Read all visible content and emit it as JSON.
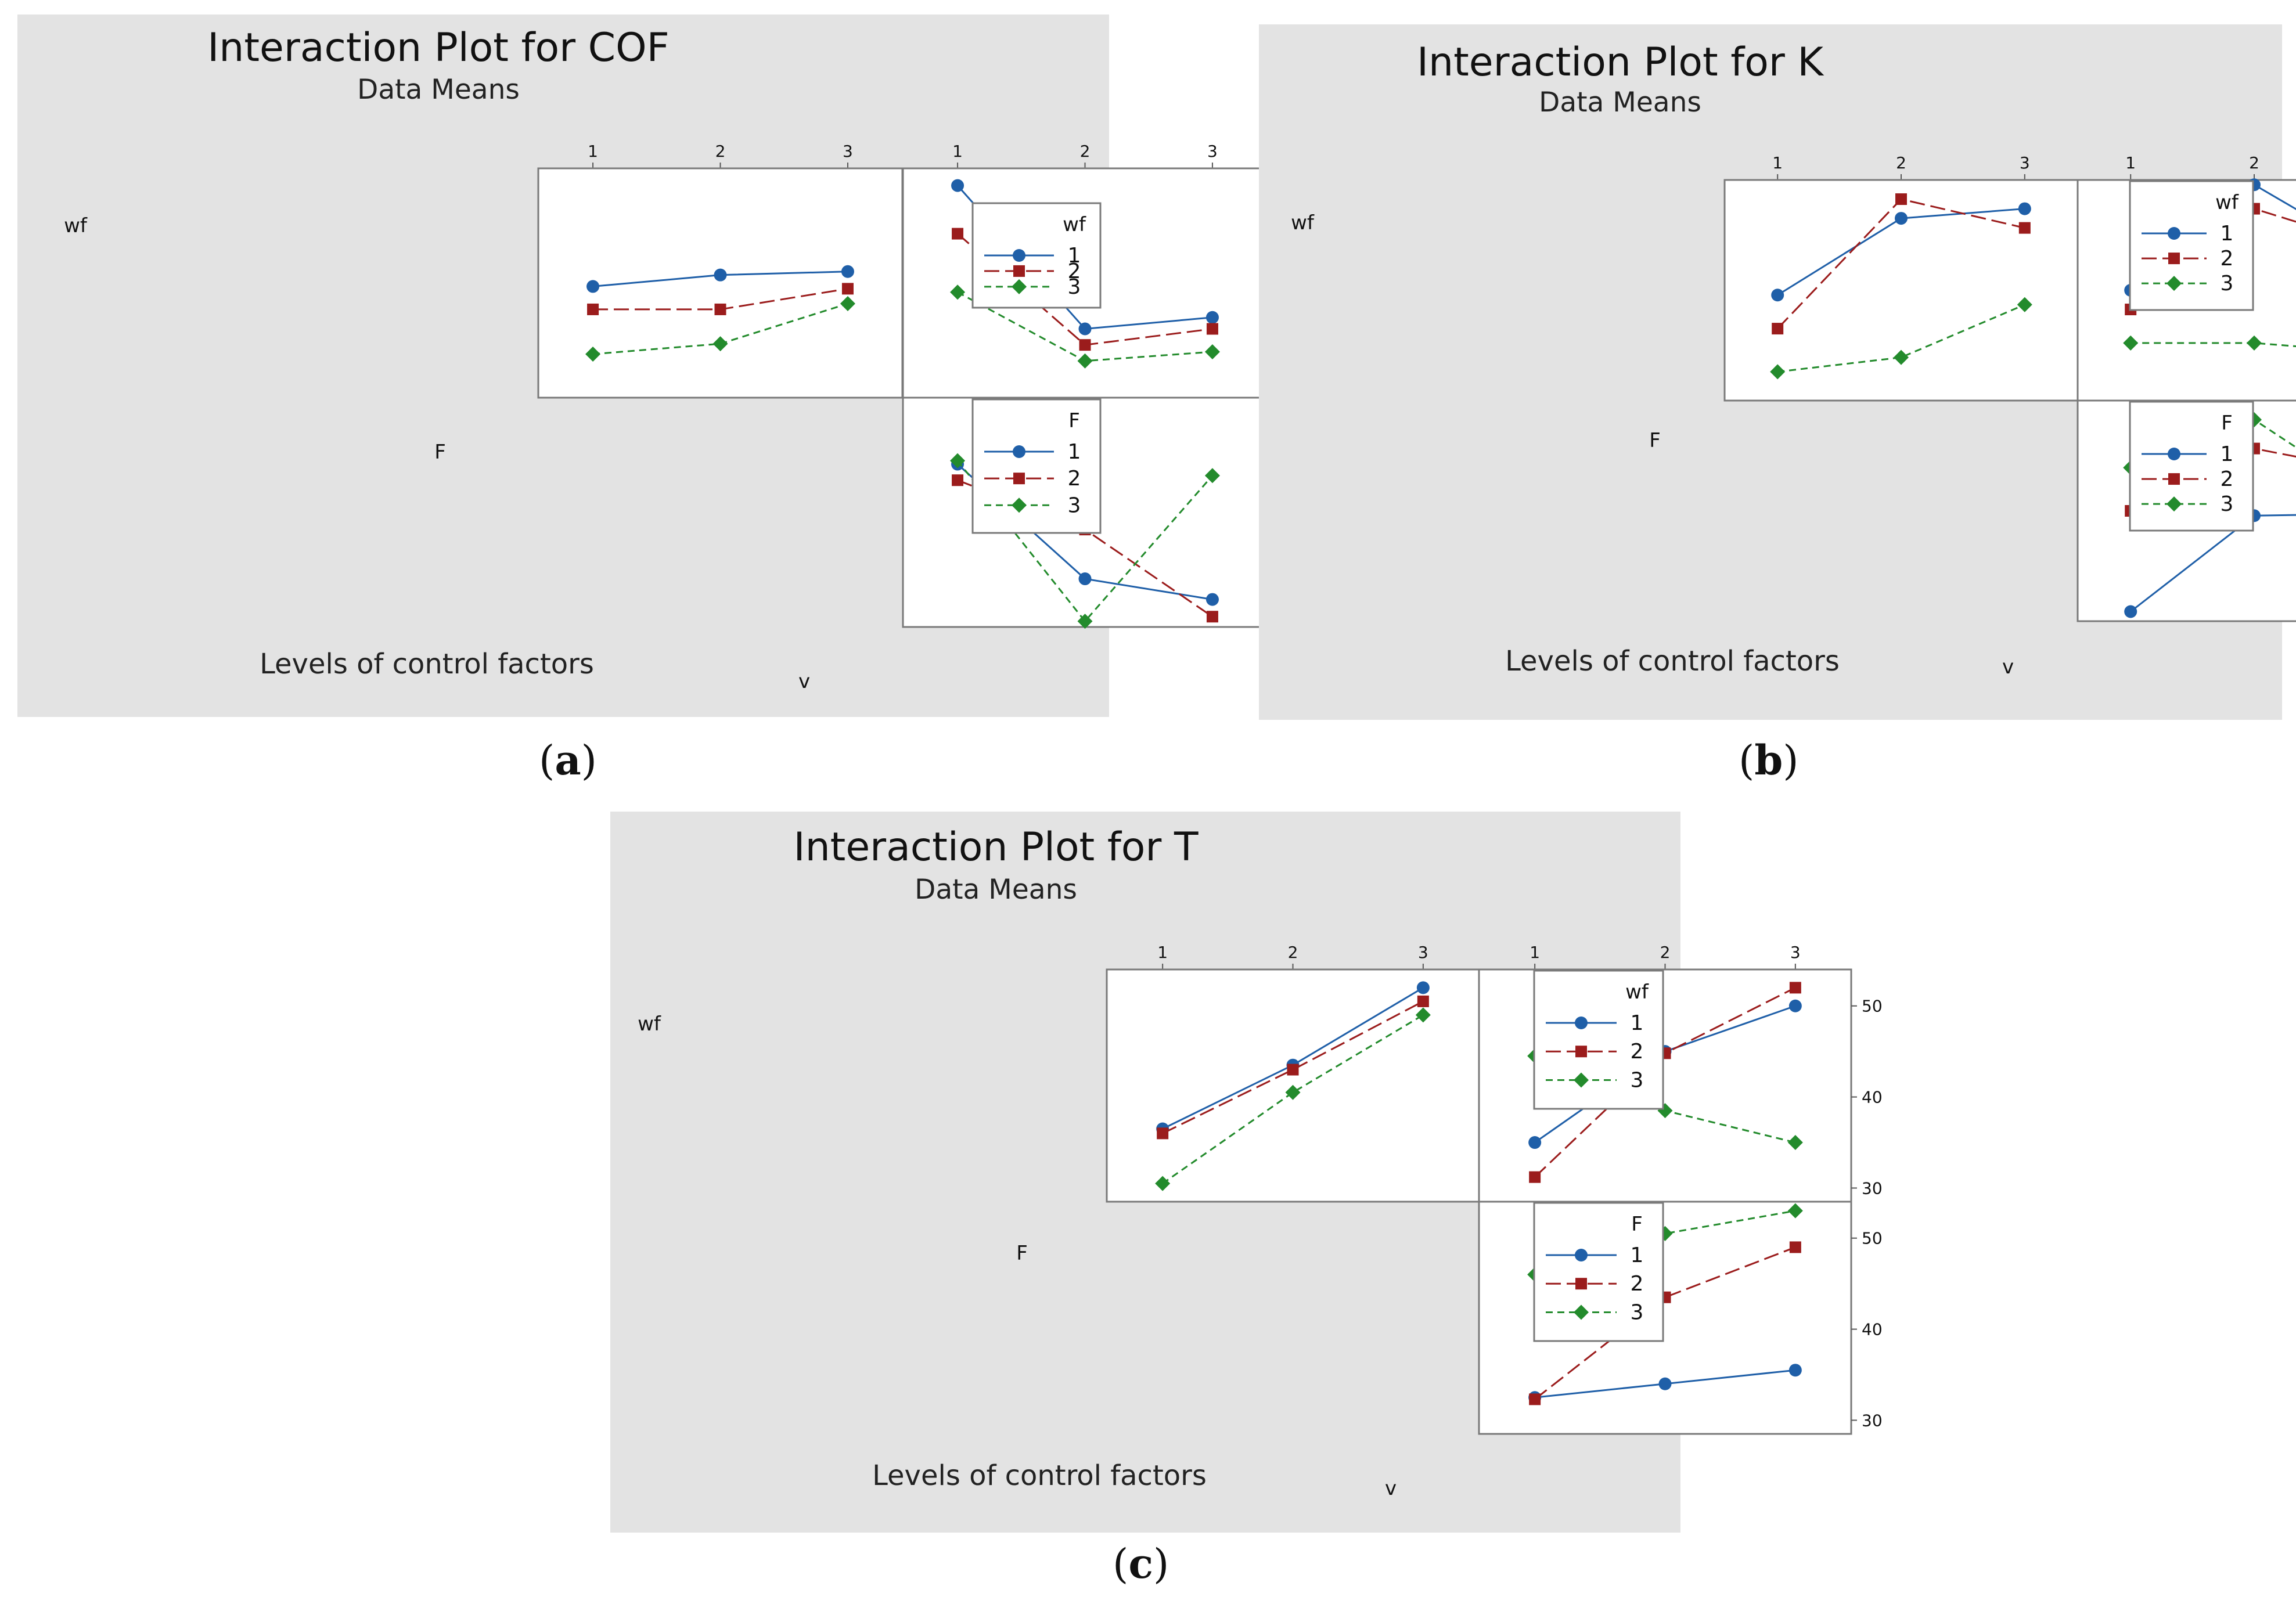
{
  "colors": {
    "level1": "#1f5fa8",
    "level2": "#9b1c1c",
    "level3": "#238b2c",
    "panel_bg": "#e3e3e3"
  },
  "icons": {
    "level1": "circle-marker",
    "level2": "square-marker",
    "level3": "diamond-marker"
  },
  "chart_data": [
    {
      "type": "line",
      "caption_letter": "a",
      "title": "Interaction Plot for COF",
      "subtitle": "Data Means",
      "xlabel": "Levels of control factors",
      "factors": [
        "wf",
        "F",
        "v"
      ],
      "levels": [
        "1",
        "2",
        "3"
      ],
      "ylim": [
        0.35,
        0.55
      ],
      "yticks": [
        "0.55",
        "0.45",
        "0.35"
      ],
      "cells": [
        {
          "id": "wf_F",
          "row_factor": "wf",
          "col_factor": "F",
          "series": [
            {
              "name": "1",
              "values": [
                0.447,
                0.457,
                0.46
              ]
            },
            {
              "name": "2",
              "values": [
                0.427,
                0.427,
                0.445
              ]
            },
            {
              "name": "3",
              "values": [
                0.388,
                0.397,
                0.432
              ]
            }
          ]
        },
        {
          "id": "wf_v",
          "row_factor": "wf",
          "col_factor": "v",
          "series": [
            {
              "name": "1",
              "values": [
                0.535,
                0.41,
                0.42
              ]
            },
            {
              "name": "2",
              "values": [
                0.493,
                0.396,
                0.41
              ]
            },
            {
              "name": "3",
              "values": [
                0.442,
                0.382,
                0.39
              ]
            }
          ]
        },
        {
          "id": "F_v",
          "row_factor": "F",
          "col_factor": "v",
          "series": [
            {
              "name": "1",
              "values": [
                0.492,
                0.392,
                0.374
              ]
            },
            {
              "name": "2",
              "values": [
                0.478,
                0.435,
                0.359
              ]
            },
            {
              "name": "3",
              "values": [
                0.495,
                0.355,
                0.482
              ]
            }
          ]
        }
      ],
      "legends": [
        {
          "title": "wf",
          "entries": [
            "1",
            "2",
            "3"
          ]
        },
        {
          "title": "F",
          "entries": [
            "1",
            "2",
            "3"
          ]
        }
      ]
    },
    {
      "type": "line",
      "caption_letter": "b",
      "title": "Interaction Plot for K",
      "subtitle": "Data Means",
      "xlabel": "Levels of control factors",
      "factors": [
        "wf",
        "F",
        "v"
      ],
      "levels": [
        "1",
        "2",
        "3"
      ],
      "ylim": [
        3,
        26
      ],
      "yticks": [
        "24",
        "16",
        "8"
      ],
      "cells": [
        {
          "id": "wf_F",
          "row_factor": "wf",
          "col_factor": "F",
          "series": [
            {
              "name": "1",
              "values": [
                14,
                22,
                23
              ]
            },
            {
              "name": "2",
              "values": [
                10.5,
                24,
                21
              ]
            },
            {
              "name": "3",
              "values": [
                6,
                7.5,
                13
              ]
            }
          ]
        },
        {
          "id": "wf_v",
          "row_factor": "wf",
          "col_factor": "v",
          "series": [
            {
              "name": "1",
              "values": [
                14.5,
                25.5,
                18
              ]
            },
            {
              "name": "2",
              "values": [
                12.5,
                23,
                19
              ]
            },
            {
              "name": "3",
              "values": [
                9,
                9,
                8
              ]
            }
          ]
        },
        {
          "id": "F_v",
          "row_factor": "F",
          "col_factor": "v",
          "series": [
            {
              "name": "1",
              "values": [
                4,
                14,
                14.2
              ]
            },
            {
              "name": "2",
              "values": [
                14.5,
                21,
                18.5
              ]
            },
            {
              "name": "3",
              "values": [
                19,
                24,
                15.5
              ]
            }
          ]
        }
      ],
      "legends": [
        {
          "title": "wf",
          "entries": [
            "1",
            "2",
            "3"
          ]
        },
        {
          "title": "F",
          "entries": [
            "1",
            "2",
            "3"
          ]
        }
      ]
    },
    {
      "type": "line",
      "caption_letter": "c",
      "title": "Interaction Plot for T",
      "subtitle": "Data Means",
      "xlabel": "Levels of control factors",
      "factors": [
        "wf",
        "F",
        "v"
      ],
      "levels": [
        "1",
        "2",
        "3"
      ],
      "ylim": [
        28.5,
        54
      ],
      "yticks": [
        "50",
        "40",
        "30"
      ],
      "cells": [
        {
          "id": "wf_F",
          "row_factor": "wf",
          "col_factor": "F",
          "series": [
            {
              "name": "1",
              "values": [
                36.5,
                43.5,
                52
              ]
            },
            {
              "name": "2",
              "values": [
                36,
                43,
                50.5
              ]
            },
            {
              "name": "3",
              "values": [
                30.5,
                40.5,
                49
              ]
            }
          ]
        },
        {
          "id": "wf_v",
          "row_factor": "wf",
          "col_factor": "v",
          "series": [
            {
              "name": "1",
              "values": [
                35,
                45,
                50
              ]
            },
            {
              "name": "2",
              "values": [
                31.2,
                44.8,
                52
              ]
            },
            {
              "name": "3",
              "values": [
                44.5,
                38.5,
                35
              ]
            }
          ]
        },
        {
          "id": "F_v",
          "row_factor": "F",
          "col_factor": "v",
          "series": [
            {
              "name": "1",
              "values": [
                32.5,
                34,
                35.5
              ]
            },
            {
              "name": "2",
              "values": [
                32.3,
                43.5,
                49
              ]
            },
            {
              "name": "3",
              "values": [
                46,
                50.5,
                53
              ]
            }
          ]
        }
      ],
      "legends": [
        {
          "title": "wf",
          "entries": [
            "1",
            "2",
            "3"
          ]
        },
        {
          "title": "F",
          "entries": [
            "1",
            "2",
            "3"
          ]
        }
      ]
    }
  ]
}
